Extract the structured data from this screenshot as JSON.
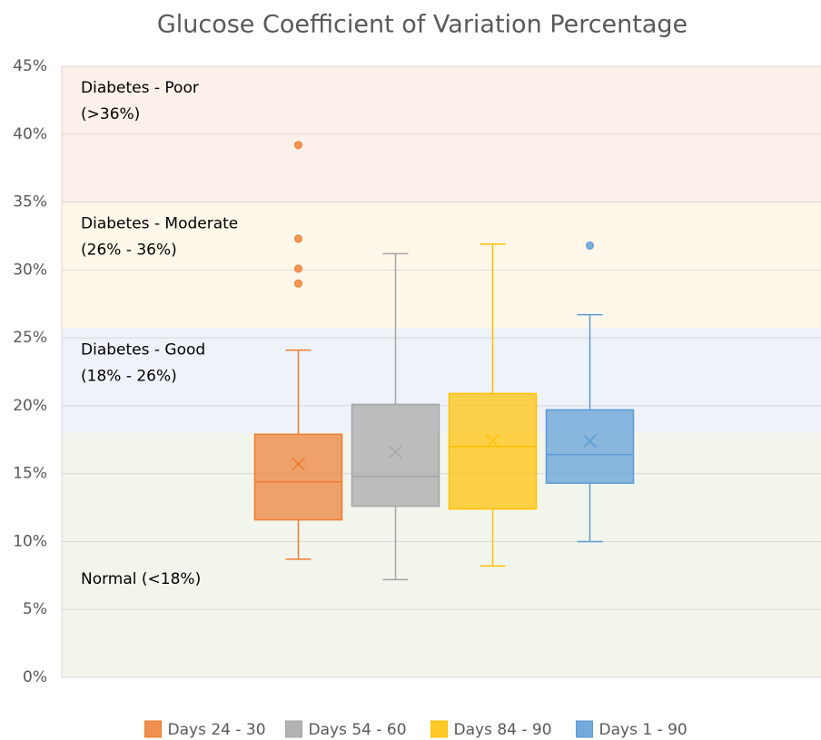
{
  "chart_data": {
    "type": "box",
    "title": "Glucose Coefficient of Variation Percentage",
    "ylim": [
      0,
      45
    ],
    "yticks": [
      {
        "value": 0,
        "label": "0%"
      },
      {
        "value": 5,
        "label": "5%"
      },
      {
        "value": 10,
        "label": "10%"
      },
      {
        "value": 15,
        "label": "15%"
      },
      {
        "value": 20,
        "label": "20%"
      },
      {
        "value": 25,
        "label": "25%"
      },
      {
        "value": 30,
        "label": "30%"
      },
      {
        "value": 35,
        "label": "35%"
      },
      {
        "value": 40,
        "label": "40%"
      },
      {
        "value": 45,
        "label": "45%"
      }
    ],
    "grid": true,
    "legend": "bottom",
    "bands": [
      {
        "lines": [
          "Diabetes - Poor",
          "(>36%)"
        ],
        "from": 35,
        "to": 45,
        "color": "#fdefe9"
      },
      {
        "lines": [
          "Diabetes - Moderate",
          "(26% - 36%)"
        ],
        "from": 25.7,
        "to": 35,
        "color": "#fef7ea"
      },
      {
        "lines": [
          "Diabetes - Good",
          "(18% - 26%)"
        ],
        "from": 18,
        "to": 25.7,
        "color": "#eef2f9"
      },
      {
        "lines": [
          "Normal (<18%)"
        ],
        "from": 0,
        "to": 18,
        "color": "#f1f5ec"
      }
    ],
    "series": [
      {
        "name": "Days 24 - 30",
        "color": "#ed7d31",
        "min": 8.7,
        "q1": 11.6,
        "median": 14.4,
        "q3": 17.9,
        "max": 24.1,
        "mean": 15.7,
        "outliers": [
          39.2,
          32.3,
          30.1,
          29.0
        ]
      },
      {
        "name": "Days 54 - 60",
        "color": "#a5a5a5",
        "min": 7.2,
        "q1": 12.6,
        "median": 14.8,
        "q3": 20.1,
        "max": 31.2,
        "mean": 16.6,
        "outliers": []
      },
      {
        "name": "Days 84 - 90",
        "color": "#ffc000",
        "min": 8.2,
        "q1": 12.4,
        "median": 17.0,
        "q3": 20.9,
        "max": 31.9,
        "mean": 17.4,
        "outliers": []
      },
      {
        "name": "Days 1 - 90",
        "color": "#5b9bd5",
        "min": 10.0,
        "q1": 14.3,
        "median": 16.4,
        "q3": 19.7,
        "max": 26.7,
        "mean": 17.4,
        "outliers": [
          31.8
        ]
      }
    ]
  }
}
